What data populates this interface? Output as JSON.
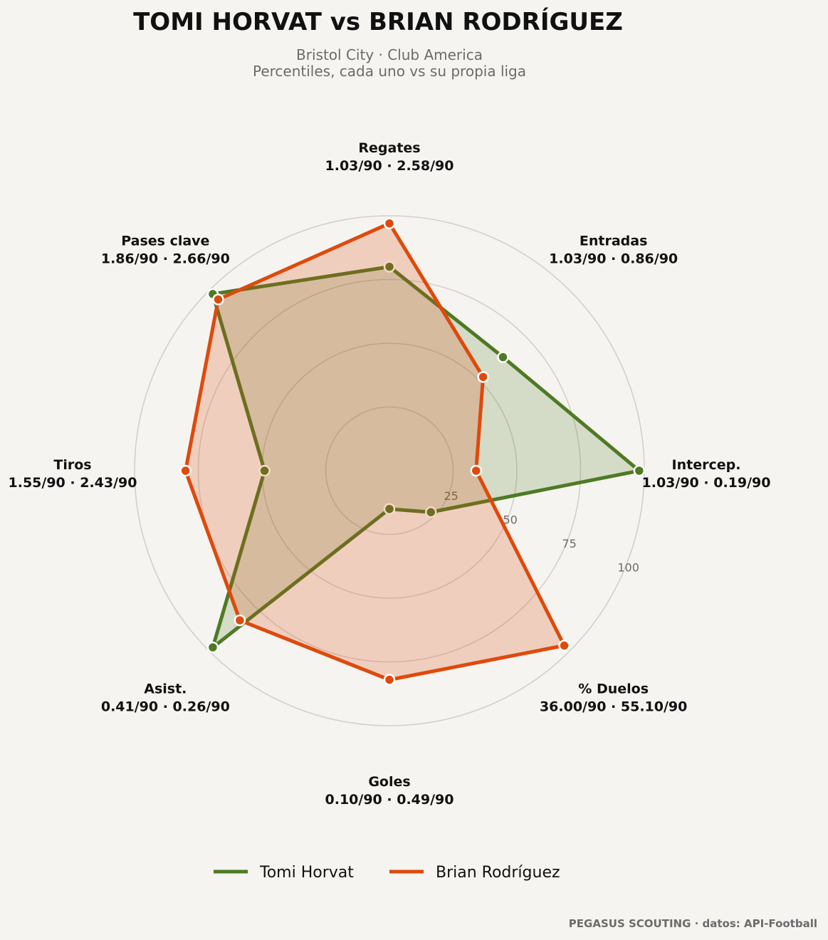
{
  "chart_data": {
    "type": "radar",
    "title": "TOMI HORVAT  vs  BRIAN RODRÍGUEZ",
    "subtitle_line1": "Bristol City · Club America",
    "subtitle_line2": "Percentiles, cada uno vs su propia liga",
    "r_range": [
      0,
      100
    ],
    "r_ticks": [
      25,
      50,
      75,
      100
    ],
    "axes": [
      {
        "name": "Regates",
        "values_label": "1.03/90 · 2.58/90"
      },
      {
        "name": "Entradas",
        "values_label": "1.03/90 · 0.86/90"
      },
      {
        "name": "Intercep.",
        "values_label": "1.03/90 · 0.19/90"
      },
      {
        "name": "% Duelos",
        "values_label": "36.00/90 · 55.10/90"
      },
      {
        "name": "Goles",
        "values_label": "0.10/90 · 0.49/90"
      },
      {
        "name": "Asist.",
        "values_label": "0.41/90 · 0.26/90"
      },
      {
        "name": "Tiros",
        "values_label": "1.55/90 · 2.43/90"
      },
      {
        "name": "Pases clave",
        "values_label": "1.86/90 · 2.66/90"
      }
    ],
    "series": [
      {
        "name": "Tomi Horvat",
        "color": "#4e7a24",
        "fill": "rgba(78,122,36,0.20)",
        "values": [
          80,
          63,
          98,
          23,
          15,
          98,
          49,
          98
        ]
      },
      {
        "name": "Brian Rodríguez",
        "color": "#de4a0c",
        "fill": "rgba(222,74,12,0.22)",
        "values": [
          97,
          52,
          34,
          97,
          82,
          83,
          80,
          95
        ]
      }
    ],
    "legend_position": "bottom",
    "grid": true
  },
  "footer": {
    "credit": "PEGASUS SCOUTING · datos: API-Football"
  }
}
